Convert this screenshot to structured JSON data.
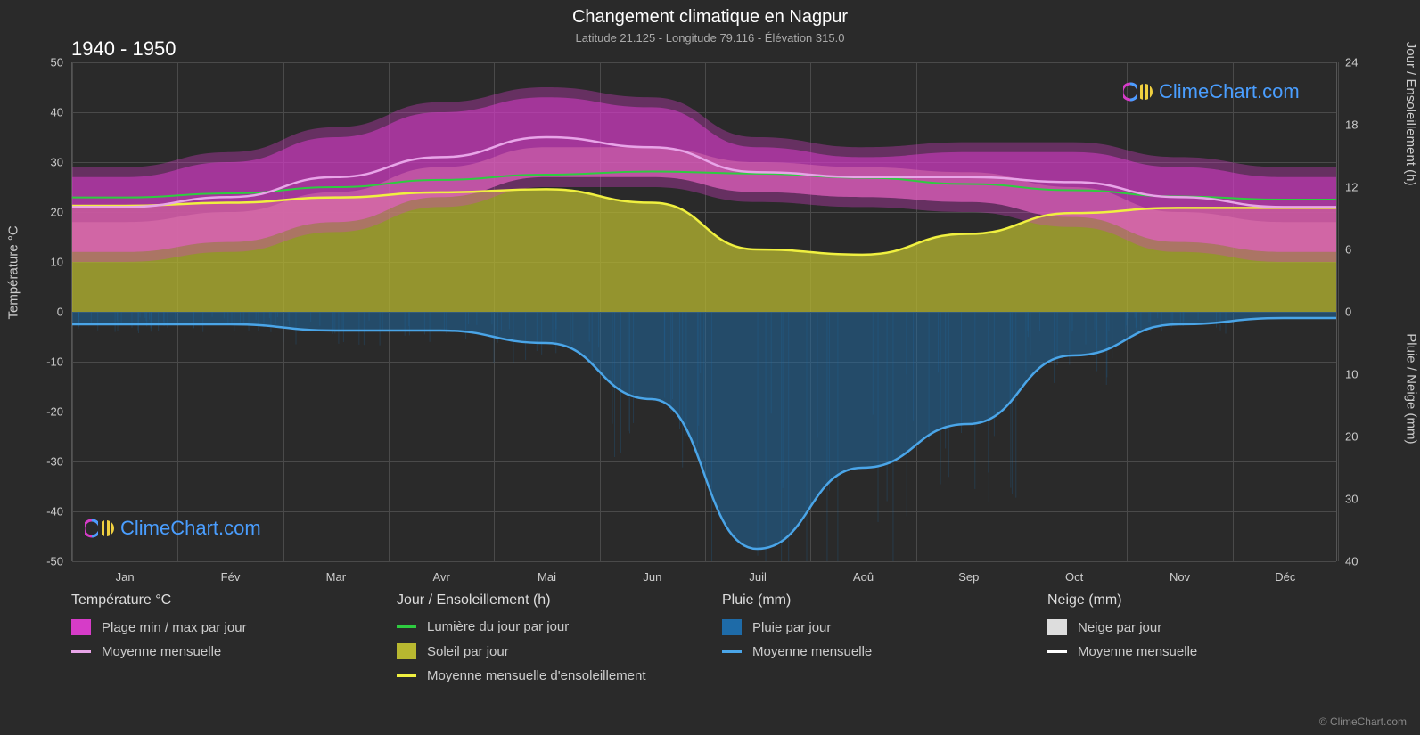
{
  "title": "Changement climatique en Nagpur",
  "subtitle": "Latitude 21.125 - Longitude 79.116 - Élévation 315.0",
  "period": "1940 - 1950",
  "watermark_text": "ClimeChart.com",
  "copyright": "© ClimeChart.com",
  "months": [
    "Jan",
    "Fév",
    "Mar",
    "Avr",
    "Mai",
    "Jun",
    "Juil",
    "Aoû",
    "Sep",
    "Oct",
    "Nov",
    "Déc"
  ],
  "left_axis": {
    "title": "Température °C",
    "min": -50,
    "max": 50,
    "step": 10,
    "ticks": [
      50,
      40,
      30,
      20,
      10,
      0,
      -10,
      -20,
      -30,
      -40,
      -50
    ]
  },
  "right_axis_top": {
    "title": "Jour / Ensoleillement (h)",
    "min": 0,
    "max": 24,
    "step": 6,
    "ticks": [
      24,
      18,
      12,
      6,
      0
    ]
  },
  "right_axis_bottom": {
    "title": "Pluie / Neige (mm)",
    "min": 0,
    "max": 40,
    "step": 10,
    "ticks": [
      0,
      10,
      20,
      30,
      40
    ]
  },
  "colors": {
    "background": "#2a2a2a",
    "grid": "#4a4a4a",
    "text": "#cccccc",
    "temp_range": "#d63cc8",
    "temp_range_inner": "#e87fb5",
    "temp_avg": "#e8a5e8",
    "daylight": "#2ecc40",
    "sun_area": "#b8b830",
    "sun_avg": "#f0f040",
    "rain_area": "#1e6ba8",
    "rain_avg": "#4aa5e8",
    "snow_area": "#dddddd",
    "snow_avg": "#ffffff",
    "watermark_brand": "#4a9eff"
  },
  "series": {
    "temp_max": [
      27,
      30,
      35,
      40,
      43,
      41,
      33,
      31,
      32,
      32,
      29,
      27
    ],
    "temp_min": [
      12,
      14,
      18,
      23,
      27,
      27,
      24,
      23,
      22,
      19,
      14,
      12
    ],
    "temp_avg": [
      21,
      23,
      27,
      31,
      35,
      33,
      28,
      27,
      27,
      26,
      23,
      21
    ],
    "daylight_h": [
      11.0,
      11.4,
      12.0,
      12.7,
      13.2,
      13.5,
      13.3,
      12.9,
      12.3,
      11.7,
      11.1,
      10.8
    ],
    "sunshine_h": [
      10.2,
      10.5,
      11.0,
      11.5,
      11.8,
      10.5,
      6.0,
      5.5,
      7.5,
      9.5,
      10.0,
      10.0
    ],
    "rain_mm": [
      2,
      2,
      3,
      3,
      5,
      14,
      38,
      25,
      18,
      7,
      2,
      1
    ],
    "snow_mm": [
      0,
      0,
      0,
      0,
      0,
      0,
      0,
      0,
      0,
      0,
      0,
      0
    ]
  },
  "legend": {
    "temp": {
      "header": "Température °C",
      "range": "Plage min / max par jour",
      "avg": "Moyenne mensuelle"
    },
    "day": {
      "header": "Jour / Ensoleillement (h)",
      "daylight": "Lumière du jour par jour",
      "sun": "Soleil par jour",
      "sun_avg": "Moyenne mensuelle d'ensoleillement"
    },
    "rain": {
      "header": "Pluie (mm)",
      "daily": "Pluie par jour",
      "avg": "Moyenne mensuelle"
    },
    "snow": {
      "header": "Neige (mm)",
      "daily": "Neige par jour",
      "avg": "Moyenne mensuelle"
    }
  }
}
